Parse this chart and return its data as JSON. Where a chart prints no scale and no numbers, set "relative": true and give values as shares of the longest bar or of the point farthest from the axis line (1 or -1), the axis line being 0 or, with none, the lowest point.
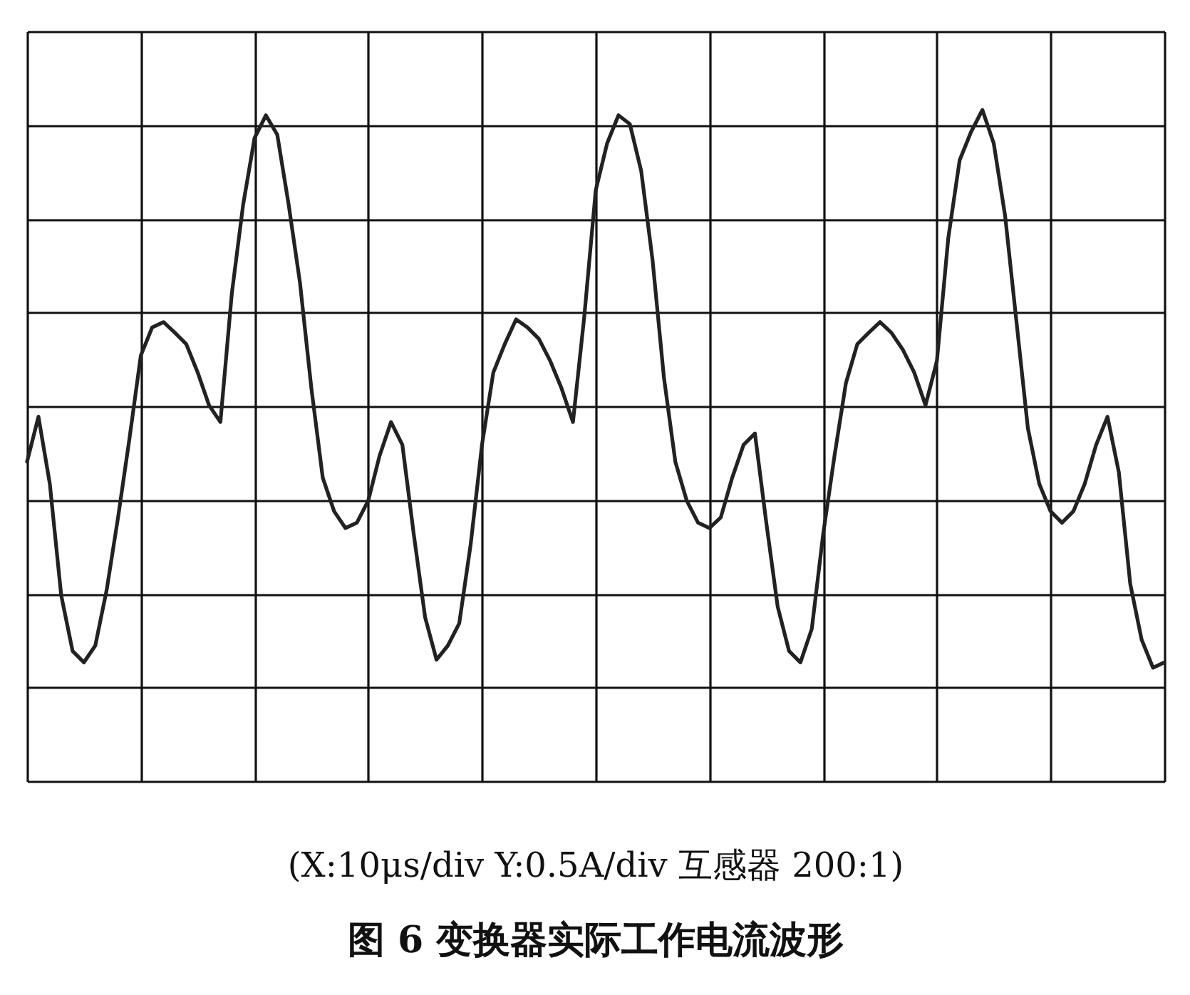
{
  "chart_data": {
    "type": "line",
    "relative": true,
    "grid": true,
    "marker": "none",
    "line_style": "solid",
    "legend": false,
    "categories": [
      null,
      null,
      null,
      null,
      null,
      null,
      null,
      null,
      null,
      null,
      null,
      null,
      null,
      null,
      null,
      null,
      null,
      null,
      null,
      null,
      null,
      null,
      null,
      null,
      null,
      null,
      null,
      null,
      null,
      null,
      null,
      null,
      null,
      null,
      null,
      null,
      null,
      null,
      null,
      null,
      null,
      null,
      null,
      null,
      null,
      null,
      null,
      null,
      null,
      null,
      null,
      null,
      null,
      null,
      null,
      null,
      null,
      null,
      null,
      null,
      null,
      null,
      null,
      null,
      null,
      null,
      null,
      null,
      null,
      null,
      null,
      null,
      null,
      null,
      null,
      null,
      null,
      null,
      null,
      null,
      null,
      null,
      null,
      null,
      null,
      null,
      null,
      null,
      null,
      null,
      null,
      null,
      null,
      null,
      null,
      null,
      null,
      null,
      null,
      null,
      null
    ],
    "series": [
      {
        "color": "#222222",
        "values": [
          0.476,
          0.543,
          0.443,
          0.277,
          0.194,
          0.177,
          0.202,
          0.285,
          0.393,
          0.51,
          0.634,
          0.676,
          0.684,
          0.668,
          0.651,
          0.609,
          0.56,
          0.535,
          0.726,
          0.859,
          0.958,
          0.992,
          0.963,
          0.859,
          0.742,
          0.585,
          0.452,
          0.402,
          0.377,
          0.385,
          0.418,
          0.485,
          0.535,
          0.501,
          0.368,
          0.244,
          0.181,
          0.202,
          0.235,
          0.352,
          0.501,
          0.609,
          0.651,
          0.688,
          0.676,
          0.659,
          0.626,
          0.585,
          0.535,
          0.693,
          0.88,
          0.95,
          0.992,
          0.979,
          0.909,
          0.776,
          0.601,
          0.476,
          0.418,
          0.385,
          0.377,
          0.393,
          0.452,
          0.501,
          0.518,
          0.385,
          0.26,
          0.194,
          0.177,
          0.227,
          0.368,
          0.485,
          0.593,
          0.651,
          0.668,
          0.684,
          0.668,
          0.643,
          0.609,
          0.56,
          0.626,
          0.809,
          0.925,
          0.967,
          1.0,
          0.95,
          0.842,
          0.684,
          0.526,
          0.443,
          0.402,
          0.385,
          0.402,
          0.443,
          0.501,
          0.543,
          0.46,
          0.294,
          0.211,
          0.169,
          0.177
        ]
      }
    ],
    "annotations": [
      "(X:10μs/div    Y:0.5A/div    互感器 200:1)",
      "图 6    变换器实际工作电流波形"
    ]
  }
}
